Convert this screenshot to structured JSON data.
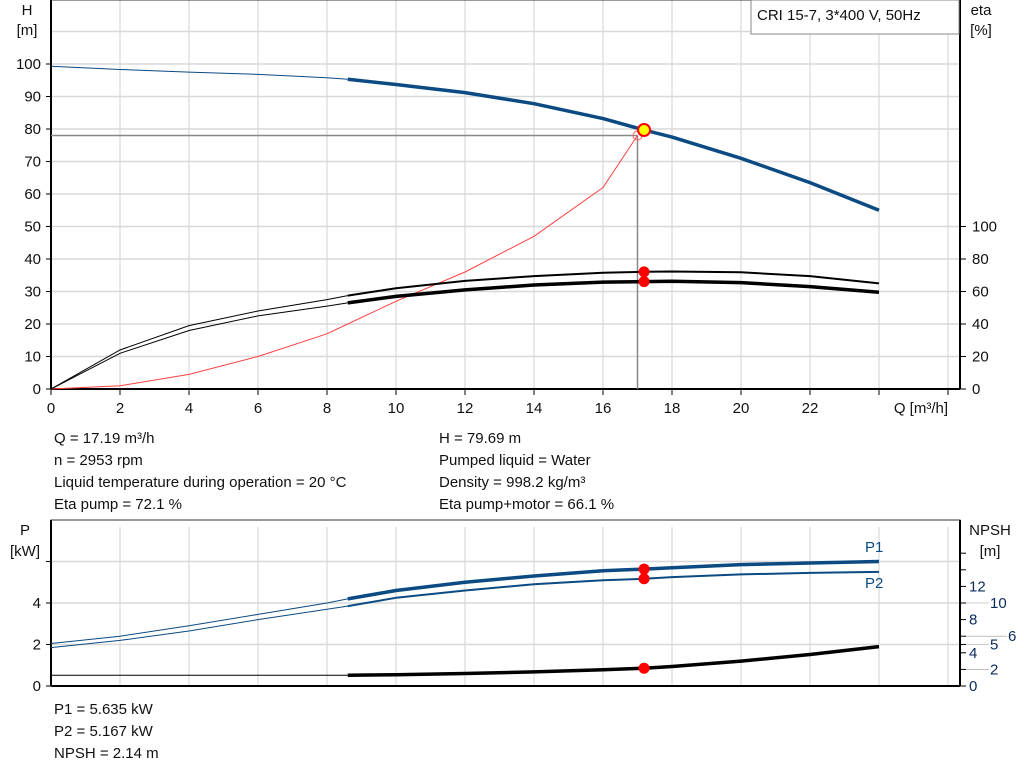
{
  "chart_data": [
    {
      "type": "line",
      "title": "CRI 15-7, 3*400 V, 50Hz",
      "xlabel": "Q [m³/h]",
      "ylabel": "H\n[m]",
      "y2label": "eta\n[%]",
      "xlim": [
        0,
        26
      ],
      "ylim": [
        0,
        110
      ],
      "y2lim": [
        0,
        220
      ],
      "xticks": [
        "0",
        "2",
        "4",
        "6",
        "8",
        "10",
        "12",
        "14",
        "16",
        "18",
        "20",
        "22"
      ],
      "yticks": [
        "0",
        "10",
        "20",
        "30",
        "40",
        "50",
        "60",
        "70",
        "80",
        "90",
        "100"
      ],
      "y2ticks": [
        "0",
        "20",
        "40",
        "60",
        "80",
        "100"
      ],
      "grid": true,
      "series": [
        {
          "id": "H",
          "axis": "H",
          "color": "#0b4a82",
          "x": [
            0,
            2,
            4,
            6,
            8,
            8.6,
            10,
            12,
            14,
            16,
            17.19,
            18,
            20,
            22,
            24
          ],
          "y": [
            99.3,
            98.3,
            97.5,
            96.8,
            95.8,
            95.3,
            93.7,
            91.2,
            87.8,
            83.2,
            79.69,
            77.5,
            71,
            63.5,
            55
          ]
        },
        {
          "id": "eta-pump",
          "axis": "eta",
          "color": "#000000",
          "x": [
            0,
            2,
            4,
            6,
            8,
            8.6,
            10,
            12,
            14,
            16,
            17.19,
            18,
            20,
            22,
            24
          ],
          "y": [
            0,
            24,
            39,
            48,
            55,
            57.5,
            62,
            66.5,
            69.5,
            71.5,
            72.1,
            72.3,
            71.8,
            69.5,
            65
          ]
        },
        {
          "id": "eta-pump-motor",
          "axis": "eta",
          "color": "#000000",
          "x": [
            0,
            2,
            4,
            6,
            8,
            8.6,
            10,
            12,
            14,
            16,
            17.19,
            18,
            20,
            22,
            24
          ],
          "y": [
            0,
            22,
            36,
            45,
            51,
            53,
            57,
            61,
            64,
            65.8,
            66.1,
            66.3,
            65.5,
            63,
            59.5
          ]
        },
        {
          "id": "system",
          "axis": "H",
          "color": "#ff4040",
          "x": [
            0,
            2,
            4,
            6,
            8,
            8.6,
            10,
            12,
            14,
            16,
            17
          ],
          "y": [
            0,
            1,
            4.5,
            10,
            17,
            20,
            27,
            36,
            47,
            62,
            78
          ]
        }
      ],
      "duty_point": {
        "Q": 17.19,
        "H": 79.69,
        "eta_pump": 72.1,
        "eta_pump_motor": 66.1
      },
      "requested_point": {
        "Q": 17,
        "H": 78
      }
    },
    {
      "type": "line",
      "xlabel": "",
      "ylabel": "P\n[kW]",
      "y2label": "NPSH\n[m]",
      "xlim": [
        0,
        26
      ],
      "ylim": [
        0,
        8
      ],
      "y2lim": [
        0,
        20
      ],
      "yticks": [
        "0",
        "2",
        "4"
      ],
      "y2ticks": [
        "0",
        "2",
        "4",
        "5",
        "6",
        "8",
        "10",
        "12"
      ],
      "grid": true,
      "series": [
        {
          "id": "P1",
          "name": "P1",
          "axis": "P",
          "color": "#0b4a82",
          "x": [
            0,
            2,
            4,
            6,
            8,
            8.6,
            10,
            12,
            14,
            16,
            17.19,
            18,
            20,
            22,
            24
          ],
          "y": [
            2.05,
            2.4,
            2.9,
            3.45,
            4.0,
            4.2,
            4.6,
            5.0,
            5.3,
            5.55,
            5.635,
            5.7,
            5.85,
            5.93,
            6.0
          ]
        },
        {
          "id": "P2",
          "name": "P2",
          "axis": "P",
          "color": "#0b4a82",
          "x": [
            0,
            2,
            4,
            6,
            8,
            8.6,
            10,
            12,
            14,
            16,
            17.19,
            18,
            20,
            22,
            24
          ],
          "y": [
            1.85,
            2.2,
            2.65,
            3.2,
            3.7,
            3.85,
            4.25,
            4.6,
            4.9,
            5.1,
            5.167,
            5.25,
            5.38,
            5.45,
            5.5
          ]
        },
        {
          "id": "NPSH",
          "axis": "NPSH",
          "color": "#000000",
          "x": [
            0,
            2,
            4,
            6,
            8,
            8.6,
            10,
            12,
            14,
            16,
            17.19,
            18,
            20,
            22,
            24
          ],
          "y": [
            1.3,
            1.3,
            1.3,
            1.3,
            1.3,
            1.3,
            1.35,
            1.5,
            1.7,
            1.95,
            2.14,
            2.35,
            3.0,
            3.8,
            4.75
          ]
        }
      ],
      "duty_point": {
        "Q": 17.19,
        "P1": 5.635,
        "P2": 5.167,
        "NPSH": 2.14
      }
    }
  ],
  "info_top_left": [
    "Q = 17.19 m³/h",
    "n = 2953 rpm",
    "Liquid temperature during operation = 20 °C",
    "Eta pump = 72.1 %"
  ],
  "info_top_right": [
    "H = 79.69 m",
    "Pumped liquid = Water",
    "Density = 998.2 kg/m³",
    "Eta pump+motor = 66.1 %"
  ],
  "info_bottom": [
    "P1 = 5.635 kW",
    "P2 = 5.167 kW",
    "NPSH = 2.14 m"
  ]
}
